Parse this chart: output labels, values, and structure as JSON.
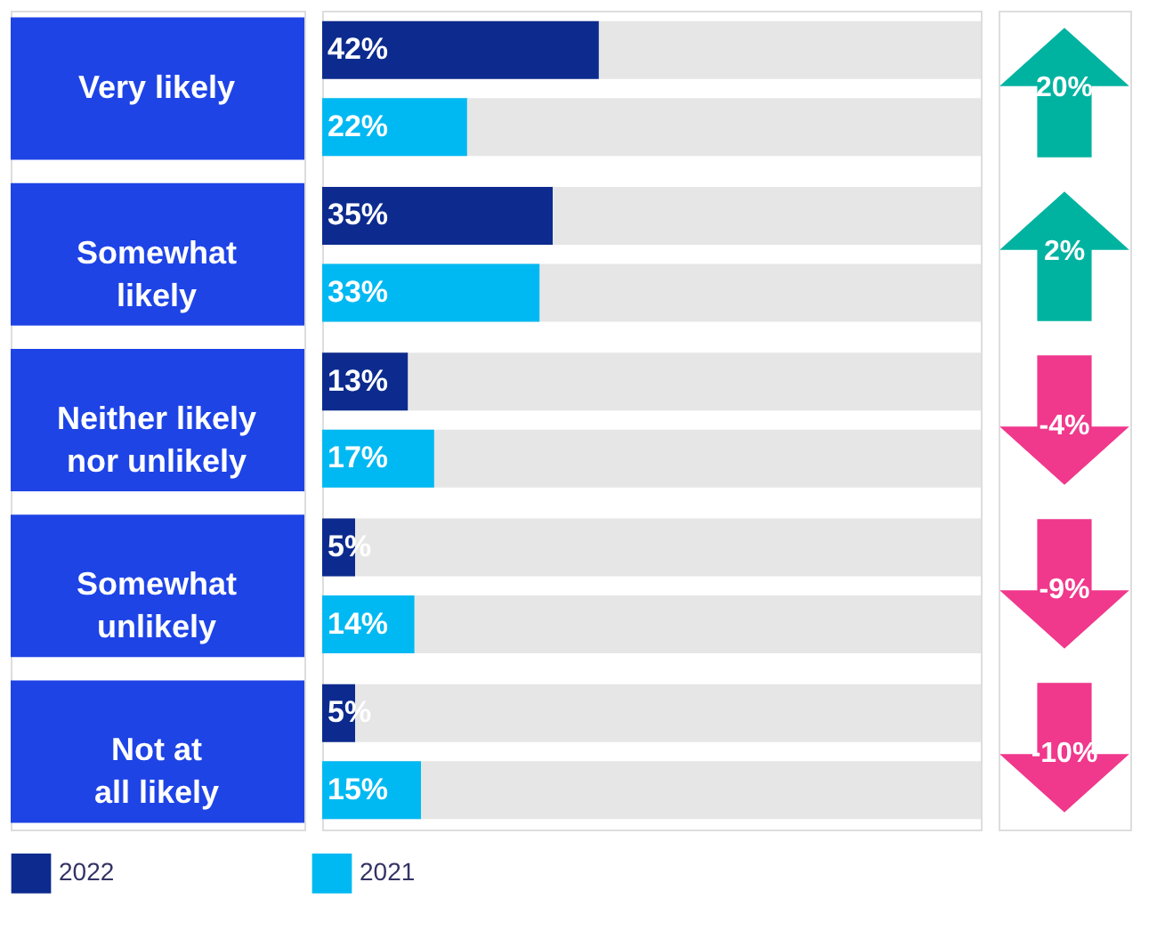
{
  "chart_data": {
    "type": "bar",
    "orientation": "horizontal",
    "categories": [
      "Very likely",
      "Somewhat\nlikely",
      "Neither likely\nnor unlikely",
      "Somewhat\nunlikely",
      "Not at\nall likely"
    ],
    "series": [
      {
        "name": "2022",
        "color": "#0d2b8e",
        "values": [
          42,
          35,
          13,
          5,
          5
        ],
        "value_labels": [
          "42%",
          "35%",
          "13%",
          "5%",
          "5%"
        ]
      },
      {
        "name": "2021",
        "color": "#00b9f2",
        "values": [
          22,
          33,
          17,
          14,
          15
        ],
        "value_labels": [
          "22%",
          "33%",
          "17%",
          "14%",
          "15%"
        ]
      }
    ],
    "xlim": [
      0,
      100
    ],
    "tick_labels": false,
    "legend": "bottom",
    "annotations": [
      "20%",
      "2%",
      "-4%",
      "-9%",
      "-10%"
    ]
  }
}
